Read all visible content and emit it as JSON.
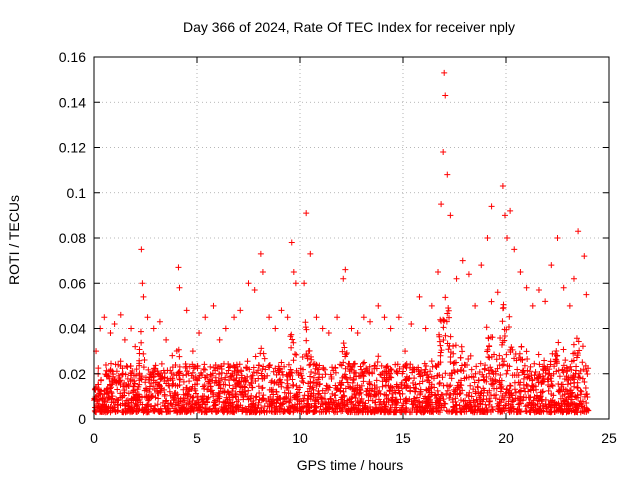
{
  "chart_data": {
    "type": "scatter",
    "title": "Day 366 of 2024, Rate Of TEC Index for receiver nply",
    "xlabel": "GPS time / hours",
    "ylabel": "ROTI / TECUs",
    "xlim": [
      0,
      25
    ],
    "ylim": [
      0,
      0.16
    ],
    "xticks": [
      "0",
      "5",
      "10",
      "15",
      "20",
      "25"
    ],
    "yticks": [
      "0",
      "0.02",
      "0.04",
      "0.06",
      "0.08",
      "0.1",
      "0.12",
      "0.14",
      "0.16"
    ],
    "grid": true,
    "marker": "+",
    "color": "#ff0000",
    "series": [
      {
        "name": "ROTI",
        "x": [
          0.1,
          0.3,
          0.5,
          0.8,
          1.0,
          1.3,
          1.5,
          1.8,
          2.0,
          2.3,
          2.35,
          2.4,
          2.6,
          2.9,
          3.2,
          3.5,
          3.8,
          4.1,
          4.15,
          4.5,
          4.8,
          5.1,
          5.4,
          5.8,
          6.1,
          6.4,
          6.8,
          7.1,
          7.5,
          7.8,
          8.1,
          8.2,
          8.5,
          8.8,
          9.1,
          9.4,
          9.6,
          9.7,
          9.8,
          10.2,
          10.3,
          10.5,
          10.8,
          11.1,
          11.4,
          11.8,
          12.1,
          12.2,
          12.5,
          12.8,
          13.1,
          13.4,
          13.8,
          14.1,
          14.4,
          14.8,
          15.1,
          15.4,
          15.8,
          16.1,
          16.4,
          16.7,
          16.85,
          16.95,
          17.0,
          17.05,
          17.15,
          17.3,
          17.6,
          17.9,
          18.2,
          18.5,
          18.8,
          19.1,
          19.3,
          19.6,
          19.85,
          19.95,
          20.05,
          20.2,
          20.4,
          20.7,
          21.0,
          21.3,
          21.6,
          21.9,
          22.2,
          22.5,
          22.8,
          23.1,
          23.3,
          23.5,
          23.8,
          23.9
        ],
        "y": [
          0.03,
          0.04,
          0.045,
          0.038,
          0.042,
          0.046,
          0.035,
          0.04,
          0.032,
          0.075,
          0.06,
          0.054,
          0.045,
          0.04,
          0.043,
          0.035,
          0.028,
          0.067,
          0.058,
          0.048,
          0.03,
          0.038,
          0.045,
          0.05,
          0.035,
          0.04,
          0.045,
          0.048,
          0.06,
          0.057,
          0.073,
          0.065,
          0.045,
          0.04,
          0.048,
          0.045,
          0.078,
          0.065,
          0.06,
          0.06,
          0.091,
          0.073,
          0.045,
          0.04,
          0.038,
          0.045,
          0.062,
          0.066,
          0.04,
          0.038,
          0.045,
          0.043,
          0.05,
          0.045,
          0.04,
          0.045,
          0.03,
          0.042,
          0.054,
          0.04,
          0.05,
          0.065,
          0.095,
          0.118,
          0.153,
          0.143,
          0.108,
          0.09,
          0.062,
          0.07,
          0.064,
          0.05,
          0.068,
          0.08,
          0.094,
          0.056,
          0.103,
          0.09,
          0.08,
          0.092,
          0.075,
          0.065,
          0.058,
          0.05,
          0.057,
          0.052,
          0.068,
          0.08,
          0.058,
          0.05,
          0.062,
          0.083,
          0.072,
          0.055
        ],
        "baseline_range": [
          0.003,
          0.035
        ]
      }
    ]
  }
}
